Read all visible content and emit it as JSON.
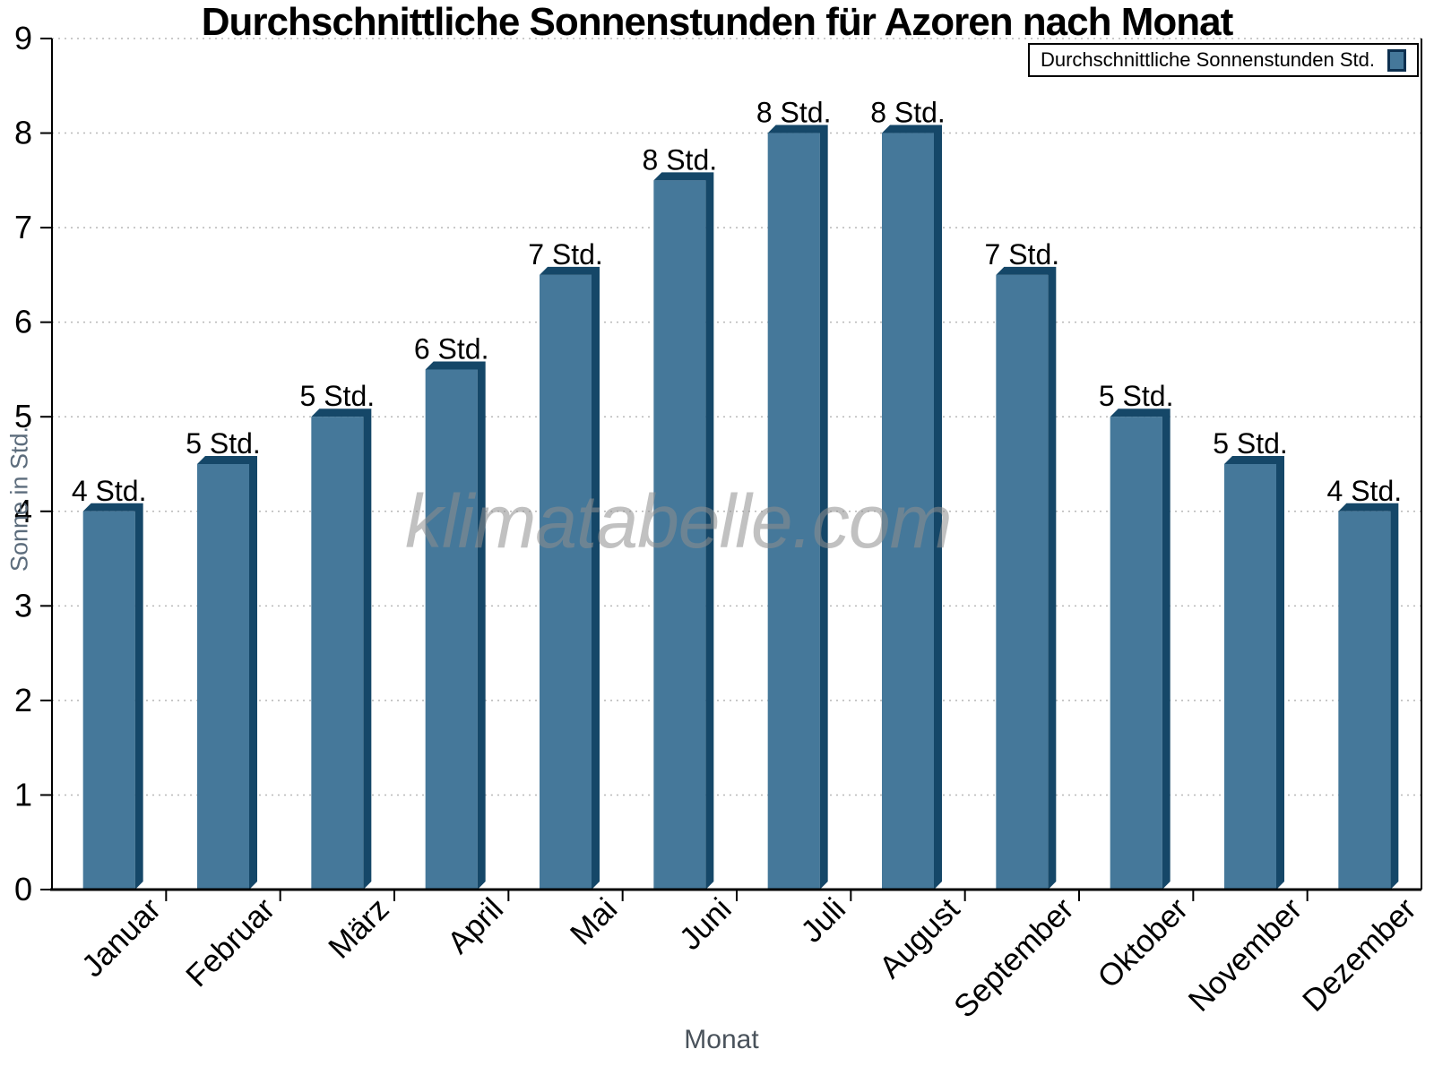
{
  "watermark": "klimatabelle.com",
  "chart_data": {
    "type": "bar",
    "title": "Durchschnittliche Sonnenstunden für Azoren nach Monat",
    "xlabel": "Monat",
    "ylabel": "Sonne in Std.",
    "legend_label": "Durchschnittliche Sonnenstunden Std.",
    "legend_position": "top-right",
    "categories": [
      "Januar",
      "Februar",
      "März",
      "April",
      "Mai",
      "Juni",
      "Juli",
      "August",
      "September",
      "Oktober",
      "November",
      "Dezember"
    ],
    "values": [
      4,
      4.5,
      5,
      5.5,
      6.5,
      7.5,
      8,
      8,
      6.5,
      5,
      4.5,
      4
    ],
    "bar_labels": [
      "4 Std.",
      "5 Std.",
      "5 Std.",
      "6 Std.",
      "7 Std.",
      "8 Std.",
      "8 Std.",
      "8 Std.",
      "7 Std.",
      "5 Std.",
      "5 Std.",
      "4 Std."
    ],
    "ylim": [
      0,
      9
    ],
    "yticks": [
      0,
      1,
      2,
      3,
      4,
      5,
      6,
      7,
      8,
      9
    ],
    "grid": true,
    "grid_style": "dotted",
    "colors": {
      "bar_face": "#45789a",
      "bar_edge": "#154768",
      "grid": "#b8b8b8",
      "axis": "#000000",
      "text": "#000000",
      "y_axis_title": "#5c6c7c",
      "x_axis_title": "#49525b",
      "watermark": "#8f8f8f",
      "legend_border": "#000000",
      "legend_swatch_border": "#0d3050"
    }
  }
}
